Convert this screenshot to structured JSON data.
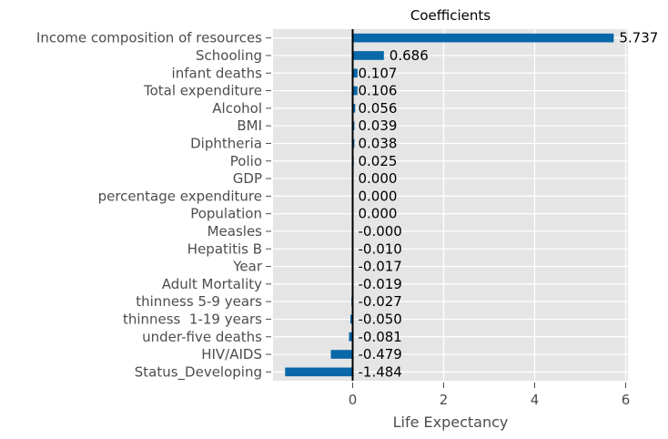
{
  "chart_data": {
    "type": "bar",
    "orientation": "horizontal",
    "title": "Coefficients",
    "xlabel": "Life Expectancy",
    "ylabel": "",
    "xlim": [
      -1.75,
      6.05
    ],
    "xticks": [
      0,
      2,
      4,
      6
    ],
    "xtick_labels": [
      "0",
      "2",
      "4",
      "6"
    ],
    "grid": true,
    "legend": "none",
    "categories": [
      "Income composition of resources",
      "Schooling",
      "infant deaths",
      "Total expenditure",
      "Alcohol",
      "BMI",
      "Diphtheria",
      "Polio",
      "GDP",
      "percentage expenditure",
      "Population",
      "Measles",
      "Hepatitis B",
      "Year",
      "Adult Mortality",
      "thinness 5-9 years",
      "thinness  1-19 years",
      "under-five deaths",
      "HIV/AIDS",
      "Status_Developing"
    ],
    "values": [
      5.737,
      0.686,
      0.107,
      0.106,
      0.056,
      0.039,
      0.038,
      0.025,
      0.0,
      0.0,
      0.0,
      -0.0,
      -0.01,
      -0.017,
      -0.019,
      -0.027,
      -0.05,
      -0.081,
      -0.479,
      -1.484
    ],
    "value_labels": [
      "5.737",
      "0.686",
      "0.107",
      "0.106",
      "0.056",
      "0.039",
      "0.038",
      "0.025",
      "0.000",
      "0.000",
      "0.000",
      "-0.000",
      "-0.010",
      "-0.017",
      "-0.019",
      "-0.027",
      "-0.050",
      "-0.081",
      "-0.479",
      "-1.484"
    ],
    "colors": {
      "bar": "#0868a8",
      "plot_background": "#e5e5e5",
      "grid": "#ffffff",
      "zero_line": "#000000"
    }
  }
}
